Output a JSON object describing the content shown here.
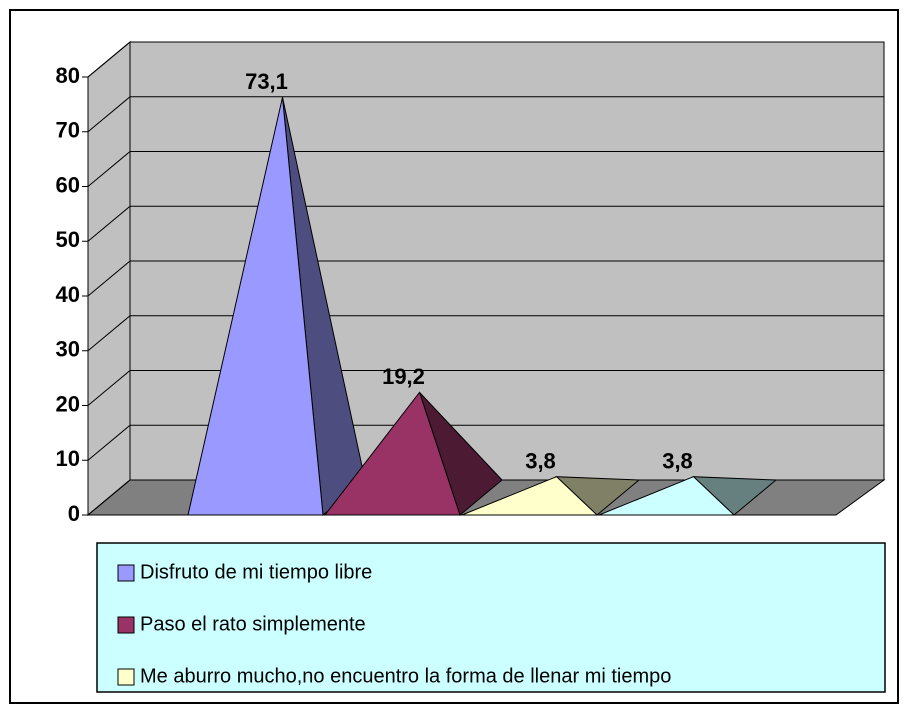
{
  "chart_data": {
    "type": "pyramid3d",
    "categories": [
      "Disfruto de mi tiempo libre",
      "Paso el rato simplemente",
      "Me aburro mucho,no encuentro la forma de llenar mi tiempo",
      null
    ],
    "values": [
      73.1,
      19.2,
      3.8,
      3.8
    ],
    "value_labels": [
      "73,1",
      "19,2",
      "3,8",
      "3,8"
    ],
    "colors": [
      "#9999ff",
      "#993366",
      "#ffffcc",
      "#ccffff"
    ],
    "ylim": [
      0,
      80
    ],
    "yticks": [
      0,
      10,
      20,
      30,
      40,
      50,
      60,
      70,
      80
    ],
    "grid": true
  }
}
